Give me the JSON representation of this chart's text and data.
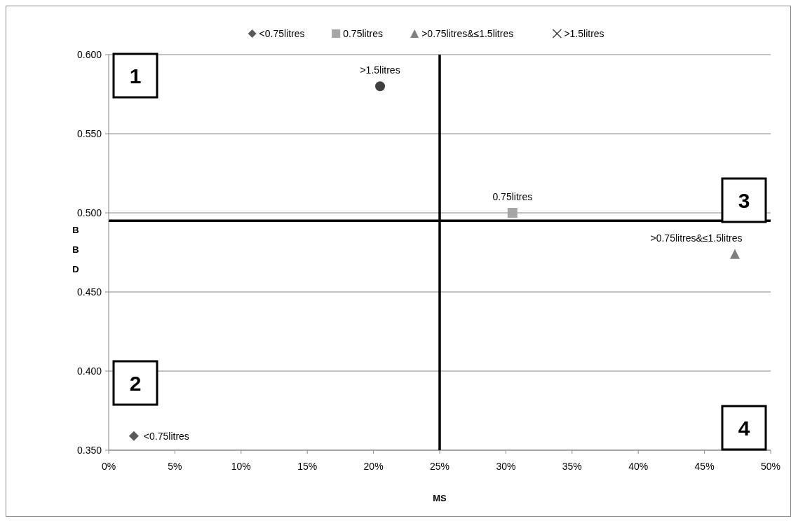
{
  "chart_data": {
    "type": "scatter",
    "xlabel": "MS",
    "ylabel": "BBD",
    "xlim": [
      0,
      50
    ],
    "xticks": [
      {
        "value": 0,
        "label": "0%"
      },
      {
        "value": 5,
        "label": "5%"
      },
      {
        "value": 10,
        "label": "10%"
      },
      {
        "value": 15,
        "label": "15%"
      },
      {
        "value": 20,
        "label": "20%"
      },
      {
        "value": 25,
        "label": "25%"
      },
      {
        "value": 30,
        "label": "30%"
      },
      {
        "value": 35,
        "label": "35%"
      },
      {
        "value": 40,
        "label": "40%"
      },
      {
        "value": 45,
        "label": "45%"
      },
      {
        "value": 50,
        "label": "50%"
      }
    ],
    "ylim": [
      0.35,
      0.6
    ],
    "yticks": [
      {
        "value": 0.35,
        "label": "0.350"
      },
      {
        "value": 0.4,
        "label": "0.400"
      },
      {
        "value": 0.45,
        "label": "0.450"
      },
      {
        "value": 0.5,
        "label": "0.500"
      },
      {
        "value": 0.55,
        "label": "0.550"
      },
      {
        "value": 0.6,
        "label": "0.600"
      }
    ],
    "grid": "y",
    "legend": "top",
    "series": [
      {
        "name": "<0.75litres",
        "color": "#595959",
        "marker": "diamond",
        "x": [
          1.9
        ],
        "values": [
          0.359
        ]
      },
      {
        "name": "0.75litres",
        "color": "#a6a6a6",
        "marker": "square",
        "x": [
          30.5
        ],
        "values": [
          0.5
        ]
      },
      {
        "name": ">0.75litres&≤1.5litres",
        "color": "#7f7f7f",
        "marker": "triangle",
        "x": [
          47.3
        ],
        "values": [
          0.474
        ]
      },
      {
        "name": ">1.5litres",
        "color": "#404040",
        "marker": "circle",
        "x": [
          20.5
        ],
        "values": [
          0.58
        ]
      }
    ],
    "ref_lines": [
      {
        "axis": "x",
        "value": 25,
        "color": "#000000"
      },
      {
        "axis": "y",
        "value": 0.495,
        "color": "#000000"
      }
    ],
    "annotations": [
      "1",
      "2",
      "3",
      "4"
    ]
  }
}
